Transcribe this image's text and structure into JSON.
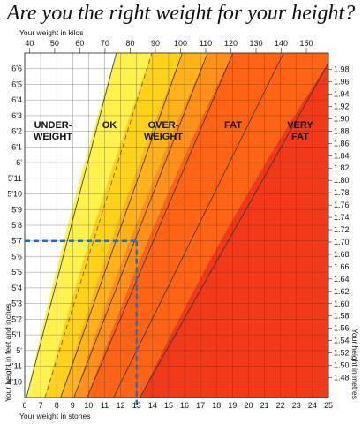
{
  "chart_data": {
    "type": "area",
    "title": "Are you the right weight for your height?",
    "top_axis": {
      "label": "Your weight in kilos",
      "range": [
        40,
        157
      ],
      "ticks": [
        40,
        50,
        60,
        70,
        80,
        90,
        100,
        110,
        120,
        130,
        140,
        150
      ]
    },
    "bottom_axis": {
      "label": "Your weight in stones",
      "range": [
        6,
        25
      ],
      "ticks": [
        6,
        7,
        8,
        9,
        10,
        11,
        12,
        13,
        14,
        15,
        16,
        17,
        18,
        19,
        20,
        21,
        22,
        23,
        24,
        25
      ]
    },
    "left_axis": {
      "label": "Your height in feet and inches",
      "range_inches": [
        57,
        79
      ],
      "ticks": [
        {
          "label": "4'10",
          "inches": 58
        },
        {
          "label": "4'11",
          "inches": 59
        },
        {
          "label": "5'",
          "inches": 60
        },
        {
          "label": "5'1",
          "inches": 61
        },
        {
          "label": "5'2",
          "inches": 62
        },
        {
          "label": "5'3",
          "inches": 63
        },
        {
          "label": "5'4",
          "inches": 64
        },
        {
          "label": "5'5",
          "inches": 65
        },
        {
          "label": "5'6",
          "inches": 66
        },
        {
          "label": "5'7",
          "inches": 67
        },
        {
          "label": "5'8",
          "inches": 68
        },
        {
          "label": "5'9",
          "inches": 69
        },
        {
          "label": "5'10",
          "inches": 70
        },
        {
          "label": "5'11",
          "inches": 71
        },
        {
          "label": "6'",
          "inches": 72
        },
        {
          "label": "6'1",
          "inches": 73
        },
        {
          "label": "6'2",
          "inches": 74
        },
        {
          "label": "6'3",
          "inches": 75
        },
        {
          "label": "6'4",
          "inches": 76
        },
        {
          "label": "6'5",
          "inches": 77
        },
        {
          "label": "6'6",
          "inches": 78
        }
      ]
    },
    "right_axis": {
      "label": "Your height in metres",
      "ticks": [
        "1.48",
        "1.50",
        "1.52",
        "1.54",
        "1.56",
        "1.58",
        "1.60",
        "1.62",
        "1.64",
        "1.66",
        "1.68",
        "1.70",
        "1.72",
        "1.74",
        "1.76",
        "1.78",
        "1.80",
        "1.82",
        "1.84",
        "1.86",
        "1.88",
        "1.90",
        "1.92",
        "1.94",
        "1.96",
        "1.98"
      ]
    },
    "zones": [
      {
        "label": [
          "UNDER-",
          "WEIGHT"
        ],
        "color": "#ffffff",
        "bmi_range": [
          0,
          18.5
        ]
      },
      {
        "label": [
          "OK"
        ],
        "color": "#ffe81a",
        "bmi_range": [
          18.5,
          25
        ]
      },
      {
        "label": [
          "OVER-",
          "WEIGHT"
        ],
        "color": "#ffa21a",
        "bmi_range": [
          25,
          30
        ]
      },
      {
        "label": [
          "FAT"
        ],
        "color": "#ff6416",
        "bmi_range": [
          30,
          40
        ]
      },
      {
        "label": [
          "VERY",
          "FAT"
        ],
        "color": "#f23a1a",
        "bmi_range": [
          40,
          100
        ]
      }
    ],
    "zone_boundaries_bmi": [
      18.5,
      22,
      25,
      27.5,
      30,
      35,
      40
    ],
    "dashed_midline_bmi": 22,
    "example": {
      "height_inches": 67,
      "weight_stones": 13,
      "color": "#1a6fd4"
    }
  }
}
